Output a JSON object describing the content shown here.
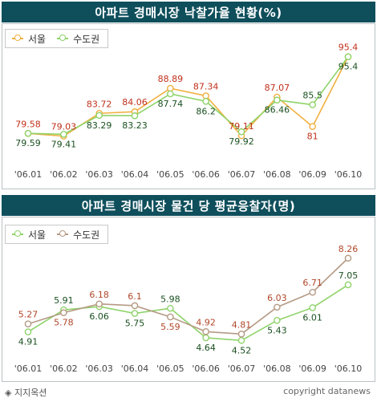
{
  "source_label": "◈ 지지옥션",
  "copyright": "copyright datanews",
  "chart_data": [
    {
      "type": "line",
      "title": "아파트 경매시장 낙찰가율 현황(%)",
      "categories": [
        "'06.01",
        "'06.02",
        "'06.03",
        "'06.04",
        "'06.05",
        "'06.06",
        "'06.07",
        "'06.08",
        "'06.09",
        "'06.10"
      ],
      "series": [
        {
          "name": "서울",
          "color": "#f0b040",
          "label_color": "#c0301a",
          "values": [
            79.58,
            79.03,
            83.72,
            84.06,
            88.89,
            87.34,
            79.11,
            87.07,
            81,
            95.4
          ]
        },
        {
          "name": "수도권",
          "color": "#8fd36a",
          "label_color": "#1a5020",
          "values": [
            79.59,
            79.41,
            83.29,
            83.23,
            87.74,
            86.2,
            79.92,
            86.46,
            85.5,
            95.4
          ]
        }
      ],
      "ylim": [
        74,
        98
      ],
      "grid": false,
      "legend": "top-left"
    },
    {
      "type": "line",
      "title": "아파트 경매시장 물건 당 평균응찰자(명)",
      "categories": [
        "'06.01",
        "'06.02",
        "'06.03",
        "'06.04",
        "'06.05",
        "'06.06",
        "'06.07",
        "'06.08",
        "'06.09",
        "'06.10"
      ],
      "series": [
        {
          "name": "서울",
          "color": "#8fd36a",
          "label_color": "#1a5020",
          "values": [
            4.91,
            5.91,
            6.06,
            5.75,
            5.98,
            4.64,
            4.52,
            5.43,
            6.01,
            7.05
          ]
        },
        {
          "name": "수도권",
          "color": "#b59a84",
          "label_color": "#b0482a",
          "values": [
            5.27,
            5.78,
            6.18,
            6.1,
            5.59,
            4.92,
            4.81,
            6.03,
            6.71,
            8.26
          ]
        }
      ],
      "ylim": [
        3.8,
        9.2
      ],
      "grid": false,
      "legend": "top-left"
    }
  ]
}
